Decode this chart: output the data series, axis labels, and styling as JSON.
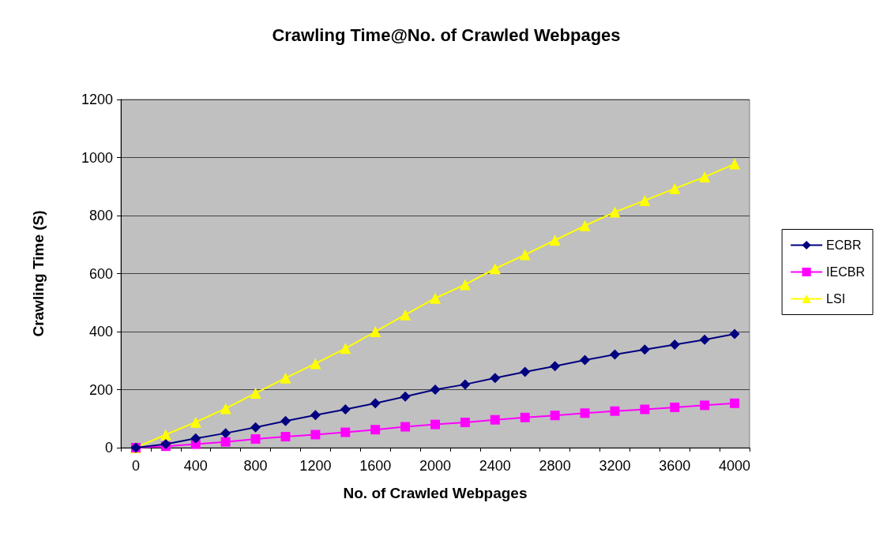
{
  "chart_data": {
    "type": "line",
    "title": "Crawling Time@No. of Crawled Webpages",
    "xlabel": "No. of Crawled Webpages",
    "ylabel": "Crawling Time (S)",
    "categories": [
      "0",
      null,
      "400",
      null,
      "800",
      null,
      "1200",
      null,
      "1600",
      null,
      "2000",
      null,
      "2400",
      null,
      "2800",
      null,
      "3200",
      null,
      "3600",
      null,
      "4000"
    ],
    "series": [
      {
        "name": "ECBR",
        "color": "#000080",
        "marker": "diamond",
        "values": [
          0,
          12,
          32,
          50,
          70,
          92,
          112,
          132,
          153,
          176,
          200,
          218,
          240,
          261,
          281,
          302,
          321,
          338,
          355,
          372,
          392
        ]
      },
      {
        "name": "IECBR",
        "color": "#ff00ff",
        "marker": "square",
        "values": [
          0,
          5,
          12,
          20,
          30,
          38,
          45,
          53,
          62,
          72,
          80,
          87,
          96,
          104,
          111,
          119,
          126,
          132,
          139,
          146,
          153
        ]
      },
      {
        "name": "LSI",
        "color": "#ffff00",
        "marker": "triangle",
        "values": [
          0,
          45,
          88,
          135,
          188,
          240,
          290,
          342,
          400,
          458,
          515,
          562,
          617,
          665,
          715,
          765,
          812,
          852,
          893,
          933,
          978
        ]
      }
    ],
    "ylim": [
      0,
      1200
    ],
    "yticks": [
      0,
      200,
      400,
      600,
      800,
      1000,
      1200
    ],
    "grid": "y",
    "legend": "right",
    "line_style": "solid"
  }
}
